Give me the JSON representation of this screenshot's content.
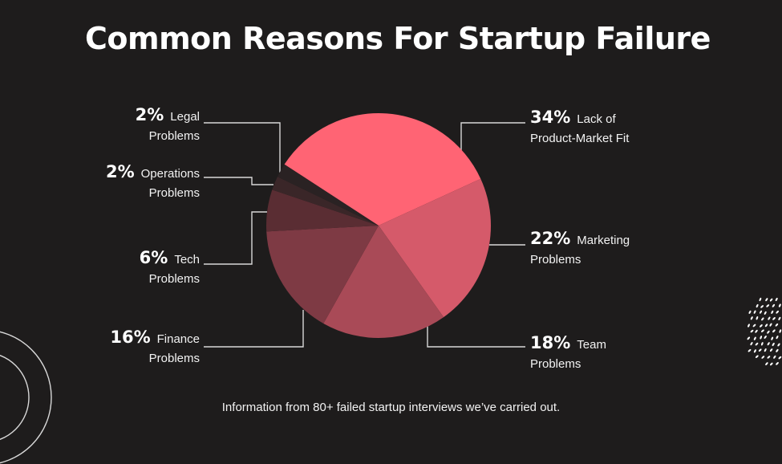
{
  "title": "Common Reasons For Startup Failure",
  "footer": "Information from 80+ failed startup interviews we’ve carried out.",
  "chart_data": {
    "type": "pie",
    "title": "Common Reasons For Startup Failure",
    "slices": [
      {
        "pct": "34%",
        "label": "Lack of",
        "label2": "Product-Market Fit",
        "value": 34,
        "color": "#ff6474"
      },
      {
        "pct": "22%",
        "label": "Marketing",
        "label2": "Problems",
        "value": 22,
        "color": "#d55a6a"
      },
      {
        "pct": "18%",
        "label": "Team",
        "label2": "Problems",
        "value": 18,
        "color": "#a94a57"
      },
      {
        "pct": "16%",
        "label": "Finance",
        "label2": "Problems",
        "value": 16,
        "color": "#7e3a44"
      },
      {
        "pct": "6%",
        "label": "Tech",
        "label2": "Problems",
        "value": 6,
        "color": "#5a2d33"
      },
      {
        "pct": "2%",
        "label": "Operations",
        "label2": "Problems",
        "value": 2,
        "color": "#3a2628"
      },
      {
        "pct": "2%",
        "label": "Legal",
        "label2": "Problems",
        "value": 2,
        "color": "#2a2223"
      }
    ]
  }
}
